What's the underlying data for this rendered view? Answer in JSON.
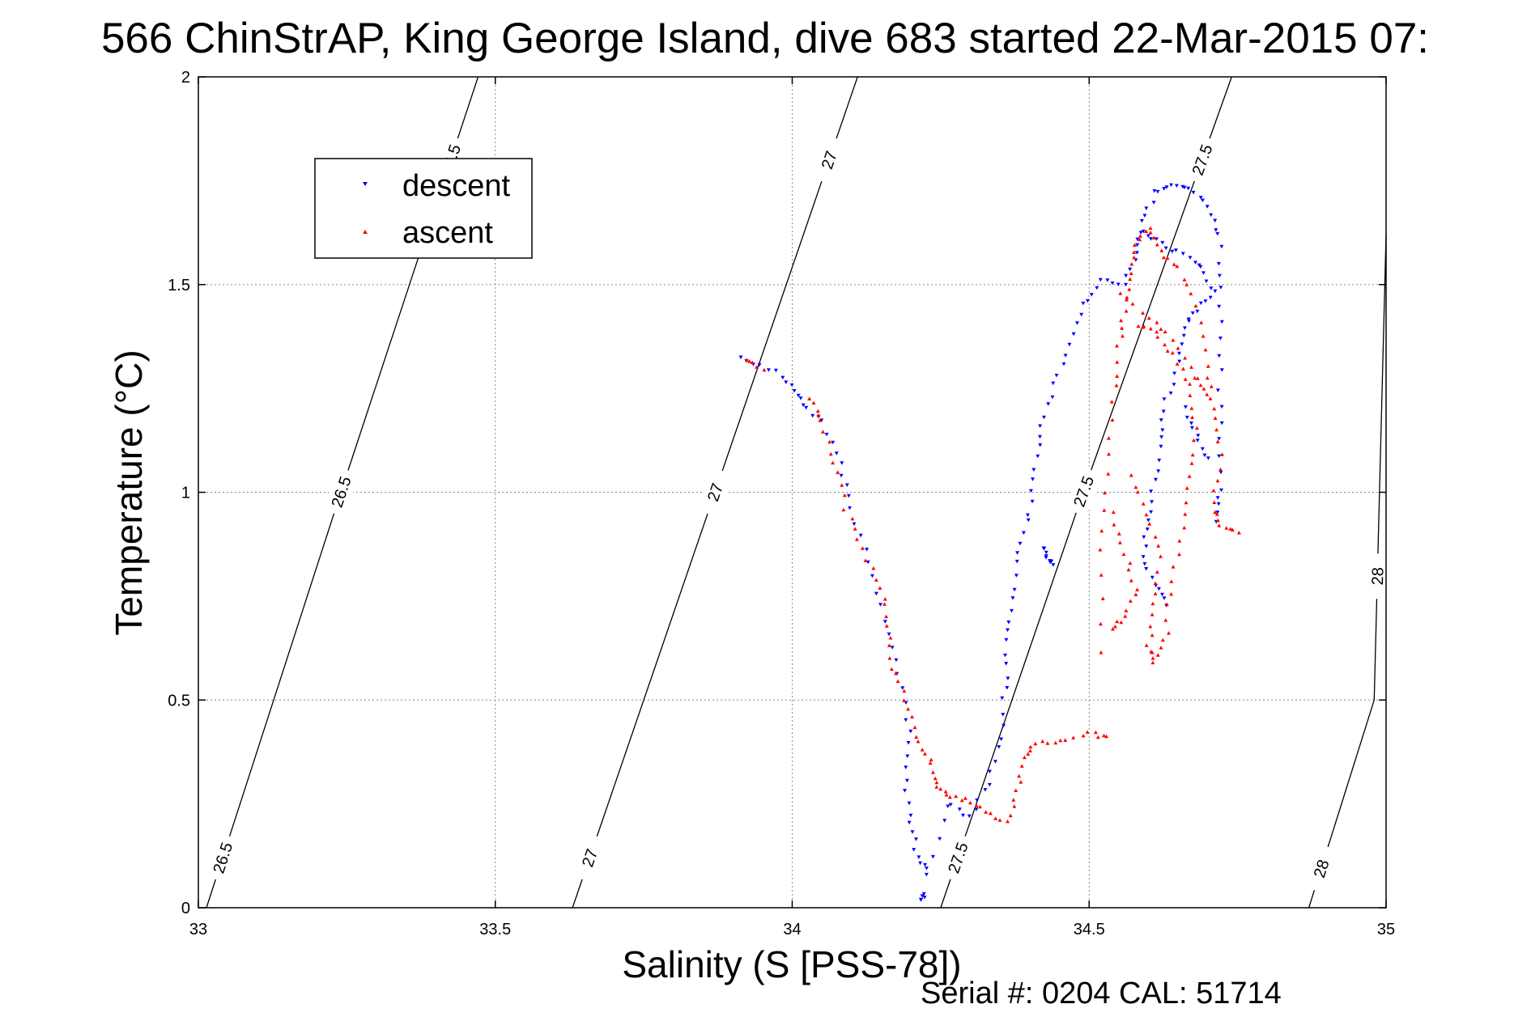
{
  "chart_data": {
    "type": "scatter",
    "title": "566 ChinStrAP, King George Island, dive 683 started 22-Mar-2015 07:",
    "xlabel": "Salinity (S [PSS-78])",
    "ylabel": "Temperature (°C)",
    "xlim": [
      33,
      35
    ],
    "ylim": [
      0,
      2
    ],
    "x_ticks": [
      "33",
      "33.5",
      "34",
      "34.5",
      "35"
    ],
    "y_ticks": [
      "0",
      "0.5",
      "1",
      "1.5",
      "2"
    ],
    "grid": true,
    "legend_position": "top-left",
    "footer": "Serial #: 0204  CAL: 51714",
    "colors": {
      "descent": "#0000ff",
      "ascent": "#ff0000",
      "contour": "#000000"
    },
    "density_contours": [
      {
        "label": "26.5",
        "points": [
          [
            33.0136,
            0.0
          ],
          [
            33.24,
            1.0
          ],
          [
            33.471,
            2.0
          ]
        ]
      },
      {
        "label": "27",
        "points": [
          [
            33.63,
            0.0
          ],
          [
            33.87,
            1.0
          ],
          [
            34.11,
            2.0
          ]
        ]
      },
      {
        "label": "27.5",
        "points": [
          [
            34.25,
            0.0
          ],
          [
            34.49,
            1.0
          ],
          [
            34.74,
            2.0
          ]
        ]
      },
      {
        "label": "28",
        "points": [
          [
            34.87,
            0.0
          ],
          [
            34.98,
            0.5
          ],
          [
            35.0,
            1.62
          ]
        ]
      }
    ],
    "series": [
      {
        "name": "descent",
        "marker": "triangle-down",
        "segments": [
          [
            [
              33.91,
              1.32
            ],
            [
              33.96,
              1.3
            ],
            [
              34.0,
              1.26
            ],
            [
              34.02,
              1.21
            ],
            [
              34.05,
              1.17
            ],
            [
              34.08,
              1.07
            ],
            [
              34.1,
              0.96
            ],
            [
              34.13,
              0.83
            ],
            [
              34.16,
              0.69
            ],
            [
              34.18,
              0.56
            ],
            [
              34.2,
              0.42
            ],
            [
              34.19,
              0.31
            ],
            [
              34.2,
              0.2
            ],
            [
              34.21,
              0.12
            ],
            [
              34.23,
              0.08
            ],
            [
              34.26,
              0.25
            ],
            [
              34.3,
              0.22
            ],
            [
              34.33,
              0.3
            ],
            [
              34.35,
              0.41
            ],
            [
              34.36,
              0.53
            ],
            [
              34.36,
              0.64
            ],
            [
              34.37,
              0.74
            ],
            [
              34.38,
              0.86
            ],
            [
              34.4,
              0.95
            ],
            [
              34.41,
              1.06
            ],
            [
              34.42,
              1.16
            ],
            [
              34.44,
              1.26
            ],
            [
              34.47,
              1.36
            ],
            [
              34.49,
              1.45
            ],
            [
              34.52,
              1.51
            ],
            [
              34.56,
              1.5
            ],
            [
              34.58,
              1.58
            ],
            [
              34.59,
              1.65
            ],
            [
              34.61,
              1.72
            ],
            [
              34.64,
              1.74
            ],
            [
              34.67,
              1.73
            ],
            [
              34.7,
              1.69
            ],
            [
              34.72,
              1.62
            ],
            [
              34.72,
              1.49
            ],
            [
              34.72,
              1.33
            ],
            [
              34.72,
              1.17
            ],
            [
              34.72,
              1.01
            ],
            [
              34.71,
              0.93
            ]
          ],
          [
            [
              34.42,
              0.87
            ],
            [
              34.43,
              0.84
            ],
            [
              34.44,
              0.83
            ]
          ],
          [
            [
              34.22,
              0.03
            ],
            [
              34.22,
              0.02
            ]
          ],
          [
            [
              34.59,
              1.63
            ],
            [
              34.62,
              1.6
            ],
            [
              34.66,
              1.57
            ],
            [
              34.69,
              1.54
            ],
            [
              34.71,
              1.48
            ],
            [
              34.68,
              1.44
            ],
            [
              34.66,
              1.4
            ],
            [
              34.65,
              1.31
            ],
            [
              34.63,
              1.22
            ],
            [
              34.62,
              1.13
            ],
            [
              34.61,
              1.03
            ],
            [
              34.6,
              0.93
            ],
            [
              34.59,
              0.85
            ],
            [
              34.61,
              0.78
            ],
            [
              34.63,
              0.73
            ]
          ],
          [
            [
              34.66,
              1.2
            ],
            [
              34.68,
              1.14
            ],
            [
              34.7,
              1.08
            ]
          ]
        ]
      },
      {
        "name": "ascent",
        "marker": "triangle-up",
        "segments": [
          [
            [
              33.92,
              1.32
            ],
            [
              33.95,
              1.3
            ]
          ],
          [
            [
              34.03,
              1.23
            ],
            [
              34.05,
              1.17
            ],
            [
              34.07,
              1.07
            ],
            [
              34.09,
              0.96
            ],
            [
              34.12,
              0.86
            ],
            [
              34.15,
              0.77
            ],
            [
              34.16,
              0.68
            ],
            [
              34.17,
              0.58
            ],
            [
              34.19,
              0.5
            ],
            [
              34.21,
              0.41
            ],
            [
              34.23,
              0.36
            ],
            [
              34.24,
              0.3
            ],
            [
              34.26,
              0.27
            ],
            [
              34.29,
              0.26
            ],
            [
              34.33,
              0.23
            ],
            [
              34.36,
              0.21
            ],
            [
              34.38,
              0.28
            ],
            [
              34.39,
              0.36
            ],
            [
              34.41,
              0.4
            ],
            [
              34.45,
              0.4
            ],
            [
              34.5,
              0.42
            ],
            [
              34.53,
              0.41
            ]
          ],
          [
            [
              34.52,
              0.62
            ],
            [
              34.52,
              0.86
            ],
            [
              34.53,
              1.05
            ],
            [
              34.54,
              1.22
            ],
            [
              34.55,
              1.35
            ],
            [
              34.56,
              1.44
            ],
            [
              34.57,
              1.53
            ],
            [
              34.58,
              1.6
            ],
            [
              34.6,
              1.64
            ],
            [
              34.62,
              1.58
            ],
            [
              34.65,
              1.54
            ],
            [
              34.68,
              1.45
            ],
            [
              34.7,
              1.3
            ],
            [
              34.71,
              1.2
            ],
            [
              34.72,
              1.09
            ],
            [
              34.71,
              0.97
            ],
            [
              34.72,
              0.92
            ],
            [
              34.75,
              0.9
            ]
          ],
          [
            [
              34.57,
              1.04
            ],
            [
              34.6,
              0.95
            ],
            [
              34.62,
              0.84
            ],
            [
              34.61,
              0.73
            ],
            [
              34.6,
              0.63
            ],
            [
              34.61,
              0.59
            ],
            [
              34.63,
              0.66
            ],
            [
              34.64,
              0.79
            ],
            [
              34.66,
              0.91
            ],
            [
              34.67,
              1.04
            ],
            [
              34.68,
              1.15
            ],
            [
              34.67,
              1.26
            ],
            [
              34.64,
              1.33
            ],
            [
              34.61,
              1.39
            ],
            [
              34.58,
              1.4
            ]
          ],
          [
            [
              34.55,
              1.48
            ],
            [
              34.6,
              1.42
            ],
            [
              34.64,
              1.37
            ],
            [
              34.68,
              1.28
            ],
            [
              34.7,
              1.24
            ]
          ],
          [
            [
              34.54,
              0.95
            ],
            [
              34.56,
              0.85
            ],
            [
              34.58,
              0.77
            ],
            [
              34.56,
              0.7
            ],
            [
              34.54,
              0.67
            ]
          ]
        ]
      }
    ]
  }
}
